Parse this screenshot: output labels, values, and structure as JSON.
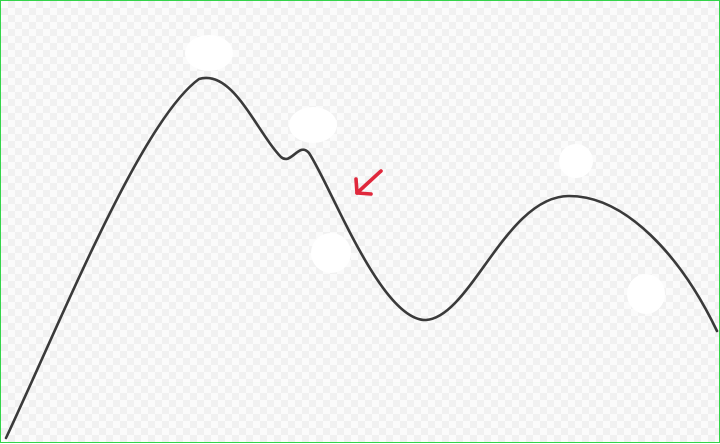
{
  "figure": {
    "curve_color": "#3a3a3a",
    "arrow_color": "#e0283c",
    "border_color": "#34d44a",
    "blob_color": "#ffffff"
  },
  "icons": {
    "arrow": "arrow-down-left-icon"
  }
}
